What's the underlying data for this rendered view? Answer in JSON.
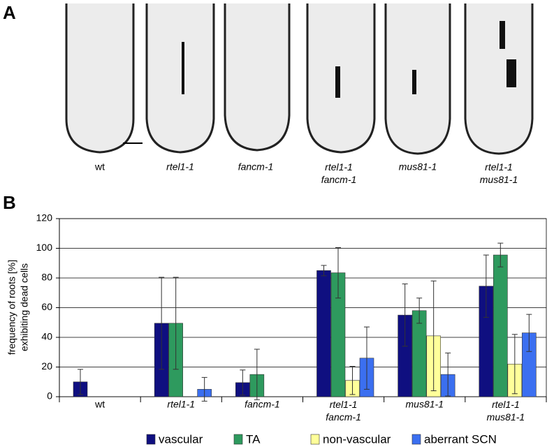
{
  "panel_a": {
    "label": "A",
    "labels": [
      "wt",
      "rtel1-1",
      "fancm-1",
      "rtel1-1\nfancm-1",
      "mus81-1",
      "rtel1-1\nmus81-1"
    ]
  },
  "chart_data": {
    "type": "bar",
    "panel_label": "B",
    "y_label": [
      "frequency of roots [%]",
      "exhibiting dead cells"
    ],
    "categories": [
      "wt",
      "rtel1-1",
      "fancm-1",
      "rtel1-1\nfancm-1",
      "mus81-1",
      "rtel1-1\nmus81-1"
    ],
    "ylim": [
      0,
      120
    ],
    "yticks": [
      0,
      20,
      40,
      60,
      80,
      100,
      120
    ],
    "grid": true,
    "series": [
      {
        "name": "vascular",
        "color": "#0f0f80",
        "values": [
          10,
          49.5,
          9.5,
          85,
          55,
          74.5
        ],
        "errors": [
          8.5,
          31,
          8.5,
          3.5,
          21,
          21
        ]
      },
      {
        "name": "TA",
        "color": "#2e9a5e",
        "values": [
          null,
          49.5,
          15,
          83.5,
          58,
          95.5
        ],
        "errors": [
          null,
          31,
          17,
          17,
          8.5,
          8
        ]
      },
      {
        "name": "non-vascular",
        "color": "#ffff9a",
        "values": [
          null,
          null,
          null,
          11,
          41,
          22
        ],
        "errors": [
          null,
          null,
          null,
          9.5,
          37,
          20
        ]
      },
      {
        "name": "aberrant SCN",
        "color": "#3b6ff0",
        "values": [
          null,
          5,
          null,
          26,
          15,
          43
        ],
        "errors": [
          null,
          8,
          null,
          21,
          14.5,
          12.5
        ]
      }
    ]
  }
}
